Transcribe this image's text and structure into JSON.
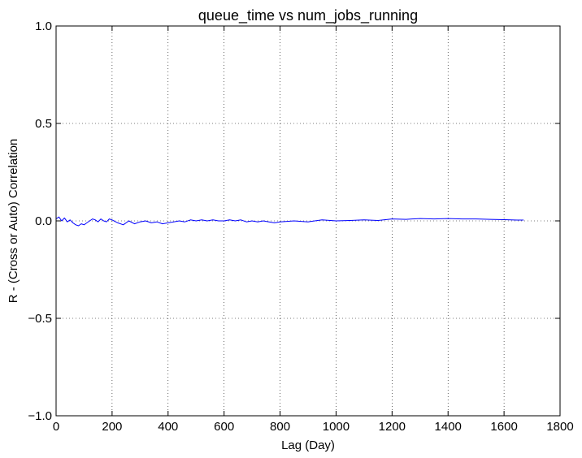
{
  "chart_data": {
    "type": "line",
    "title": "queue_time vs num_jobs_running",
    "xlabel": "Lag (Day)",
    "ylabel": "R - (Cross or Auto) Correlation",
    "xlim": [
      0,
      1800
    ],
    "ylim": [
      -1.0,
      1.0
    ],
    "xticks": [
      0,
      200,
      400,
      600,
      800,
      1000,
      1200,
      1400,
      1600,
      1800
    ],
    "xtick_labels": [
      "0",
      "200",
      "400",
      "600",
      "800",
      "1000",
      "1200",
      "1400",
      "1600",
      "1800"
    ],
    "yticks": [
      -1.0,
      -0.5,
      0.0,
      0.5,
      1.0
    ],
    "ytick_labels": [
      "−1.0",
      "−0.5",
      "0.0",
      "0.5",
      "1.0"
    ],
    "grid": true,
    "legend": "none",
    "series": [
      {
        "color": "#0000ff",
        "x": [
          0,
          10,
          20,
          30,
          40,
          50,
          60,
          70,
          80,
          90,
          100,
          110,
          120,
          130,
          140,
          150,
          160,
          170,
          180,
          190,
          200,
          220,
          240,
          260,
          280,
          300,
          320,
          340,
          360,
          380,
          400,
          420,
          440,
          460,
          480,
          500,
          520,
          540,
          560,
          580,
          600,
          620,
          640,
          660,
          680,
          700,
          720,
          740,
          760,
          780,
          800,
          850,
          900,
          950,
          1000,
          1050,
          1100,
          1150,
          1200,
          1250,
          1300,
          1350,
          1400,
          1450,
          1500,
          1550,
          1600,
          1650,
          1670
        ],
        "y": [
          0.01,
          0.02,
          0.0,
          0.015,
          -0.005,
          0.005,
          -0.01,
          -0.02,
          -0.025,
          -0.015,
          -0.02,
          -0.01,
          0.0,
          0.01,
          0.005,
          -0.005,
          0.01,
          0.0,
          -0.005,
          0.01,
          0.005,
          -0.01,
          -0.02,
          0.0,
          -0.015,
          -0.005,
          0.0,
          -0.01,
          -0.005,
          -0.015,
          -0.01,
          -0.005,
          0.0,
          -0.005,
          0.005,
          0.0,
          0.005,
          0.0,
          0.005,
          0.0,
          0.0,
          0.005,
          0.0,
          0.005,
          -0.005,
          0.0,
          -0.005,
          0.0,
          -0.005,
          -0.01,
          -0.005,
          0.0,
          -0.005,
          0.005,
          0.0,
          0.002,
          0.005,
          0.002,
          0.01,
          0.008,
          0.012,
          0.01,
          0.012,
          0.01,
          0.01,
          0.008,
          0.006,
          0.004,
          0.004
        ]
      }
    ]
  }
}
